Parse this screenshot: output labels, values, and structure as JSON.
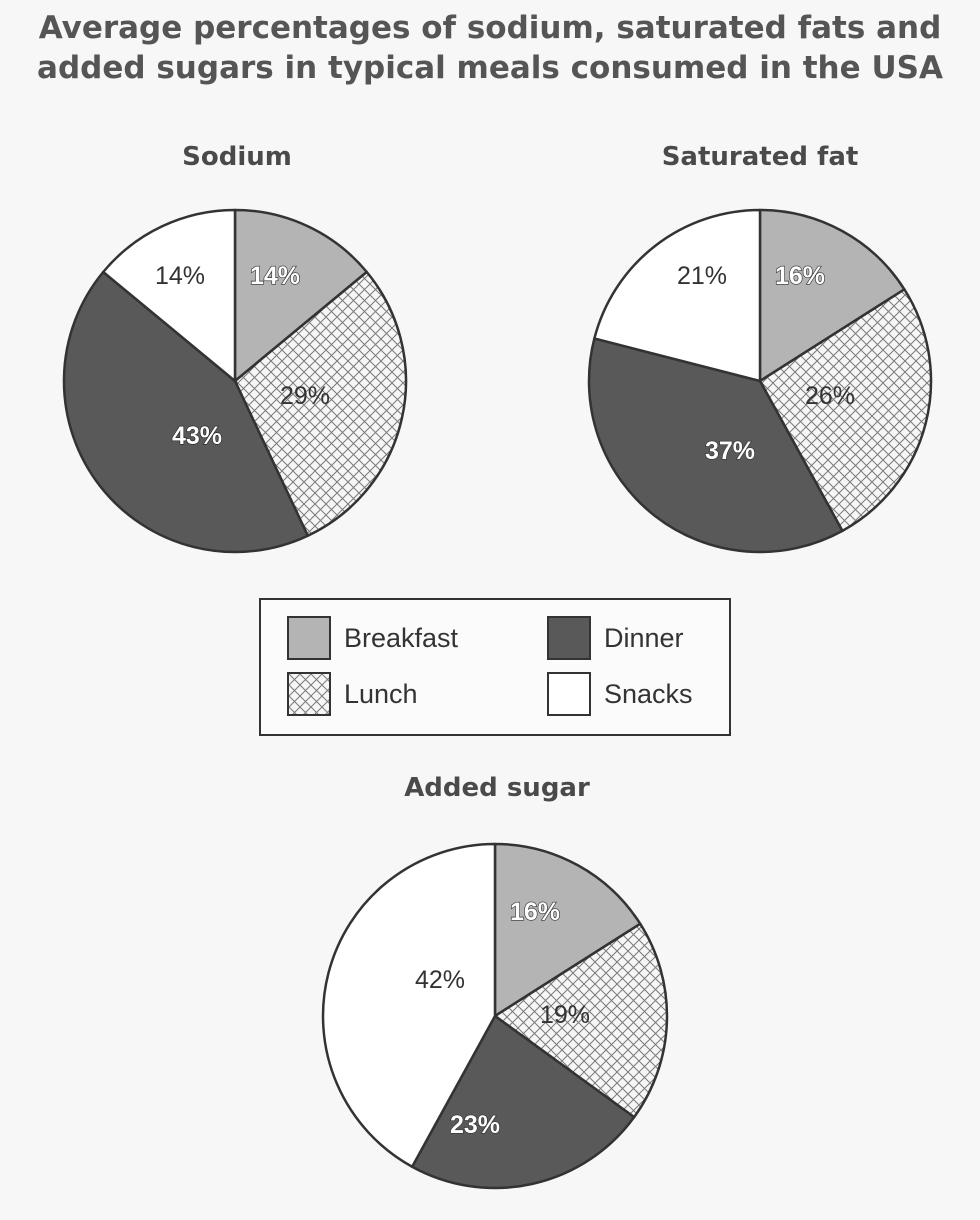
{
  "title_line1": "Average percentages of sodium, saturated fats and",
  "title_line2": "added sugars in typical meals consumed in the USA",
  "legend": [
    {
      "key": "breakfast",
      "label": "Breakfast"
    },
    {
      "key": "dinner",
      "label": "Dinner"
    },
    {
      "key": "lunch",
      "label": "Lunch"
    },
    {
      "key": "snacks",
      "label": "Snacks"
    }
  ],
  "colors": {
    "breakfast": "#b4b4b4",
    "lunch_hatch": "#7a7a7a",
    "lunch_bg": "#f6f6f6",
    "dinner": "#595959",
    "snacks": "#ffffff",
    "outline": "#333333"
  },
  "chart_data": [
    {
      "id": "sodium",
      "type": "pie",
      "title": "Sodium",
      "categories": [
        "Breakfast",
        "Lunch",
        "Dinner",
        "Snacks"
      ],
      "values": [
        14,
        29,
        43,
        14
      ],
      "labels": [
        "14%",
        "29%",
        "43%",
        "14%"
      ]
    },
    {
      "id": "fat",
      "type": "pie",
      "title": "Saturated fat",
      "categories": [
        "Breakfast",
        "Lunch",
        "Dinner",
        "Snacks"
      ],
      "values": [
        16,
        26,
        37,
        21
      ],
      "labels": [
        "16%",
        "26%",
        "37%",
        "21%"
      ]
    },
    {
      "id": "sugar",
      "type": "pie",
      "title": "Added sugar",
      "categories": [
        "Breakfast",
        "Lunch",
        "Dinner",
        "Snacks"
      ],
      "values": [
        16,
        19,
        23,
        42
      ],
      "labels": [
        "16%",
        "19%",
        "23%",
        "42%"
      ]
    }
  ]
}
